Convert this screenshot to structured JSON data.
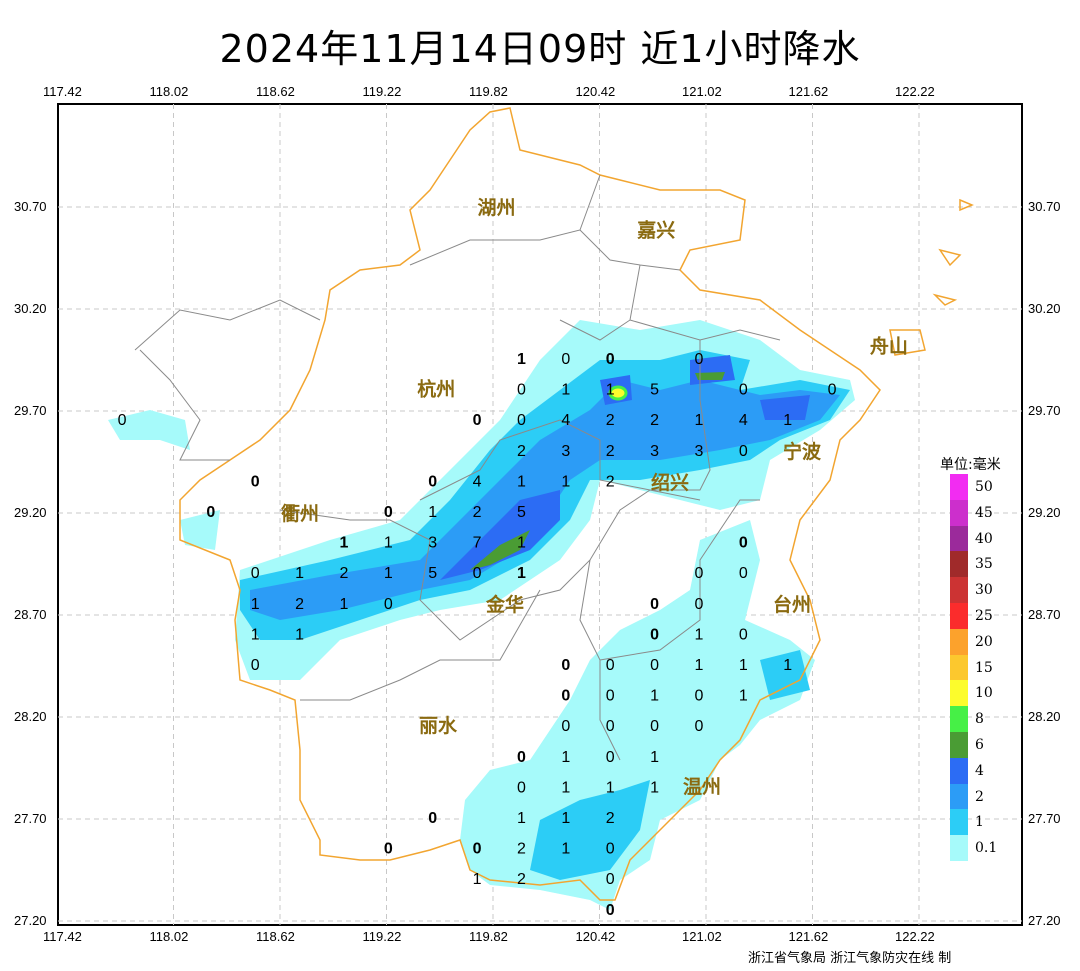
{
  "title": "2024年11月14日09时  近1小时降水",
  "lon_ticks": [
    "117.42",
    "118.02",
    "118.62",
    "119.22",
    "119.82",
    "120.42",
    "121.02",
    "121.62",
    "122.22"
  ],
  "lat_ticks": [
    "30.70",
    "30.20",
    "29.70",
    "29.20",
    "28.70",
    "28.20",
    "27.70",
    "27.20"
  ],
  "cities": [
    {
      "name": "湖州",
      "lon": 119.84,
      "lat": 30.7
    },
    {
      "name": "嘉兴",
      "lon": 120.74,
      "lat": 30.59
    },
    {
      "name": "杭州",
      "lon": 119.5,
      "lat": 29.81
    },
    {
      "name": "绍兴",
      "lon": 120.55,
      "lat": 29.65
    },
    {
      "name": "宁波",
      "lon": 121.34,
      "lat": 29.65
    },
    {
      "name": "舟山",
      "lon": 122.05,
      "lat": 30.02
    },
    {
      "name": "衢州",
      "lon": 118.62,
      "lat": 28.92
    },
    {
      "name": "金华",
      "lon": 120.0,
      "lat": 29.08
    },
    {
      "name": "台州",
      "lon": 121.09,
      "lat": 28.72
    },
    {
      "name": "丽水",
      "lon": 119.51,
      "lat": 28.16
    },
    {
      "name": "温州",
      "lon": 120.42,
      "lat": 27.87
    }
  ],
  "stations": [
    {
      "lat": 29.96,
      "pts": [
        [
          119.98,
          "1",
          1
        ],
        [
          120.23,
          "0",
          0
        ],
        [
          120.48,
          "0",
          1
        ],
        [
          120.98,
          "0",
          0
        ]
      ]
    },
    {
      "lat": 29.81,
      "pts": [
        [
          119.98,
          "0",
          0
        ],
        [
          120.23,
          "1",
          0
        ],
        [
          120.48,
          "1",
          0
        ],
        [
          120.73,
          "5",
          0
        ],
        [
          121.23,
          "0",
          0
        ],
        [
          121.73,
          "0",
          0
        ]
      ]
    },
    {
      "lat": 29.66,
      "pts": [
        [
          117.73,
          "0",
          0
        ],
        [
          119.73,
          "0",
          1
        ],
        [
          119.98,
          "0",
          0
        ],
        [
          120.23,
          "4",
          0
        ],
        [
          120.48,
          "2",
          0
        ],
        [
          120.73,
          "2",
          0
        ],
        [
          120.98,
          "1",
          0
        ],
        [
          121.23,
          "4",
          0
        ],
        [
          121.48,
          "1",
          0
        ]
      ]
    },
    {
      "lat": 29.51,
      "pts": [
        [
          119.98,
          "2",
          0
        ],
        [
          120.23,
          "3",
          0
        ],
        [
          120.48,
          "2",
          0
        ],
        [
          120.73,
          "3",
          0
        ],
        [
          120.98,
          "3",
          0
        ],
        [
          121.23,
          "0",
          0
        ]
      ]
    },
    {
      "lat": 29.36,
      "pts": [
        [
          118.48,
          "0",
          1
        ],
        [
          119.48,
          "0",
          1
        ],
        [
          119.73,
          "4",
          0
        ],
        [
          119.98,
          "1",
          0
        ],
        [
          120.23,
          "1",
          0
        ],
        [
          120.48,
          "2",
          0
        ]
      ]
    },
    {
      "lat": 29.21,
      "pts": [
        [
          118.23,
          "0",
          1
        ],
        [
          119.23,
          "0",
          1
        ],
        [
          119.48,
          "1",
          0
        ],
        [
          119.73,
          "2",
          0
        ],
        [
          119.98,
          "5",
          0
        ]
      ]
    },
    {
      "lat": 29.06,
      "pts": [
        [
          118.98,
          "1",
          1
        ],
        [
          119.23,
          "1",
          0
        ],
        [
          119.48,
          "3",
          0
        ],
        [
          119.73,
          "7",
          0
        ],
        [
          119.98,
          "1",
          0
        ],
        [
          121.23,
          "0",
          1
        ]
      ]
    },
    {
      "lat": 28.91,
      "pts": [
        [
          118.48,
          "0",
          0
        ],
        [
          118.73,
          "1",
          0
        ],
        [
          118.98,
          "2",
          0
        ],
        [
          119.23,
          "1",
          0
        ],
        [
          119.48,
          "5",
          0
        ],
        [
          119.73,
          "0",
          0
        ],
        [
          119.98,
          "1",
          1
        ],
        [
          120.98,
          "0",
          0
        ],
        [
          121.23,
          "0",
          0
        ]
      ]
    },
    {
      "lat": 28.76,
      "pts": [
        [
          118.48,
          "1",
          0
        ],
        [
          118.73,
          "2",
          0
        ],
        [
          118.98,
          "1",
          0
        ],
        [
          119.23,
          "0",
          0
        ],
        [
          120.73,
          "0",
          1
        ],
        [
          120.98,
          "0",
          0
        ]
      ]
    },
    {
      "lat": 28.61,
      "pts": [
        [
          118.48,
          "1",
          0
        ],
        [
          118.73,
          "1",
          0
        ],
        [
          120.73,
          "0",
          1
        ],
        [
          120.98,
          "1",
          0
        ],
        [
          121.23,
          "0",
          0
        ]
      ]
    },
    {
      "lat": 28.46,
      "pts": [
        [
          118.48,
          "0",
          0
        ],
        [
          120.23,
          "0",
          1
        ],
        [
          120.48,
          "0",
          0
        ],
        [
          120.73,
          "0",
          0
        ],
        [
          120.98,
          "1",
          0
        ],
        [
          121.23,
          "1",
          0
        ],
        [
          121.48,
          "1",
          0
        ]
      ]
    },
    {
      "lat": 28.31,
      "pts": [
        [
          120.23,
          "0",
          1
        ],
        [
          120.48,
          "0",
          0
        ],
        [
          120.73,
          "1",
          0
        ],
        [
          120.98,
          "0",
          0
        ],
        [
          121.23,
          "1",
          0
        ]
      ]
    },
    {
      "lat": 28.16,
      "pts": [
        [
          120.23,
          "0",
          0
        ],
        [
          120.48,
          "0",
          0
        ],
        [
          120.73,
          "0",
          0
        ],
        [
          120.98,
          "0",
          0
        ]
      ]
    },
    {
      "lat": 28.01,
      "pts": [
        [
          119.98,
          "0",
          1
        ],
        [
          120.23,
          "1",
          0
        ],
        [
          120.48,
          "0",
          0
        ],
        [
          120.73,
          "1",
          0
        ]
      ]
    },
    {
      "lat": 27.86,
      "pts": [
        [
          119.98,
          "0",
          0
        ],
        [
          120.23,
          "1",
          0
        ],
        [
          120.48,
          "1",
          0
        ],
        [
          120.73,
          "1",
          0
        ]
      ]
    },
    {
      "lat": 27.71,
      "pts": [
        [
          119.48,
          "0",
          1
        ],
        [
          119.98,
          "1",
          0
        ],
        [
          120.23,
          "1",
          0
        ],
        [
          120.48,
          "2",
          0
        ]
      ]
    },
    {
      "lat": 27.56,
      "pts": [
        [
          119.23,
          "0",
          1
        ],
        [
          119.73,
          "0",
          1
        ],
        [
          119.98,
          "2",
          0
        ],
        [
          120.23,
          "1",
          0
        ],
        [
          120.48,
          "0",
          0
        ]
      ]
    },
    {
      "lat": 27.41,
      "pts": [
        [
          119.73,
          "1",
          0
        ],
        [
          119.98,
          "2",
          0
        ],
        [
          120.48,
          "0",
          0
        ]
      ]
    },
    {
      "lat": 27.26,
      "pts": [
        [
          120.48,
          "0",
          1
        ]
      ]
    }
  ],
  "legend": {
    "title": "单位:毫米",
    "items": [
      {
        "label": "50",
        "color": "#f22cf2"
      },
      {
        "label": "45",
        "color": "#cc2fcc"
      },
      {
        "label": "40",
        "color": "#9b2a9b"
      },
      {
        "label": "35",
        "color": "#a02a2a"
      },
      {
        "label": "30",
        "color": "#cc3333"
      },
      {
        "label": "25",
        "color": "#fb2c2c"
      },
      {
        "label": "20",
        "color": "#fca22c"
      },
      {
        "label": "15",
        "color": "#fcc82e"
      },
      {
        "label": "10",
        "color": "#fcfc2c"
      },
      {
        "label": "8",
        "color": "#46f046"
      },
      {
        "label": "6",
        "color": "#4a9c34"
      },
      {
        "label": "4",
        "color": "#2c6cf4"
      },
      {
        "label": "2",
        "color": "#2c9cf6"
      },
      {
        "label": "1",
        "color": "#2ccdf6"
      },
      {
        "label": "0.1",
        "color": "#a6fafa"
      }
    ]
  },
  "footer": "浙江省气象局   浙江气象防灾在线 制"
}
